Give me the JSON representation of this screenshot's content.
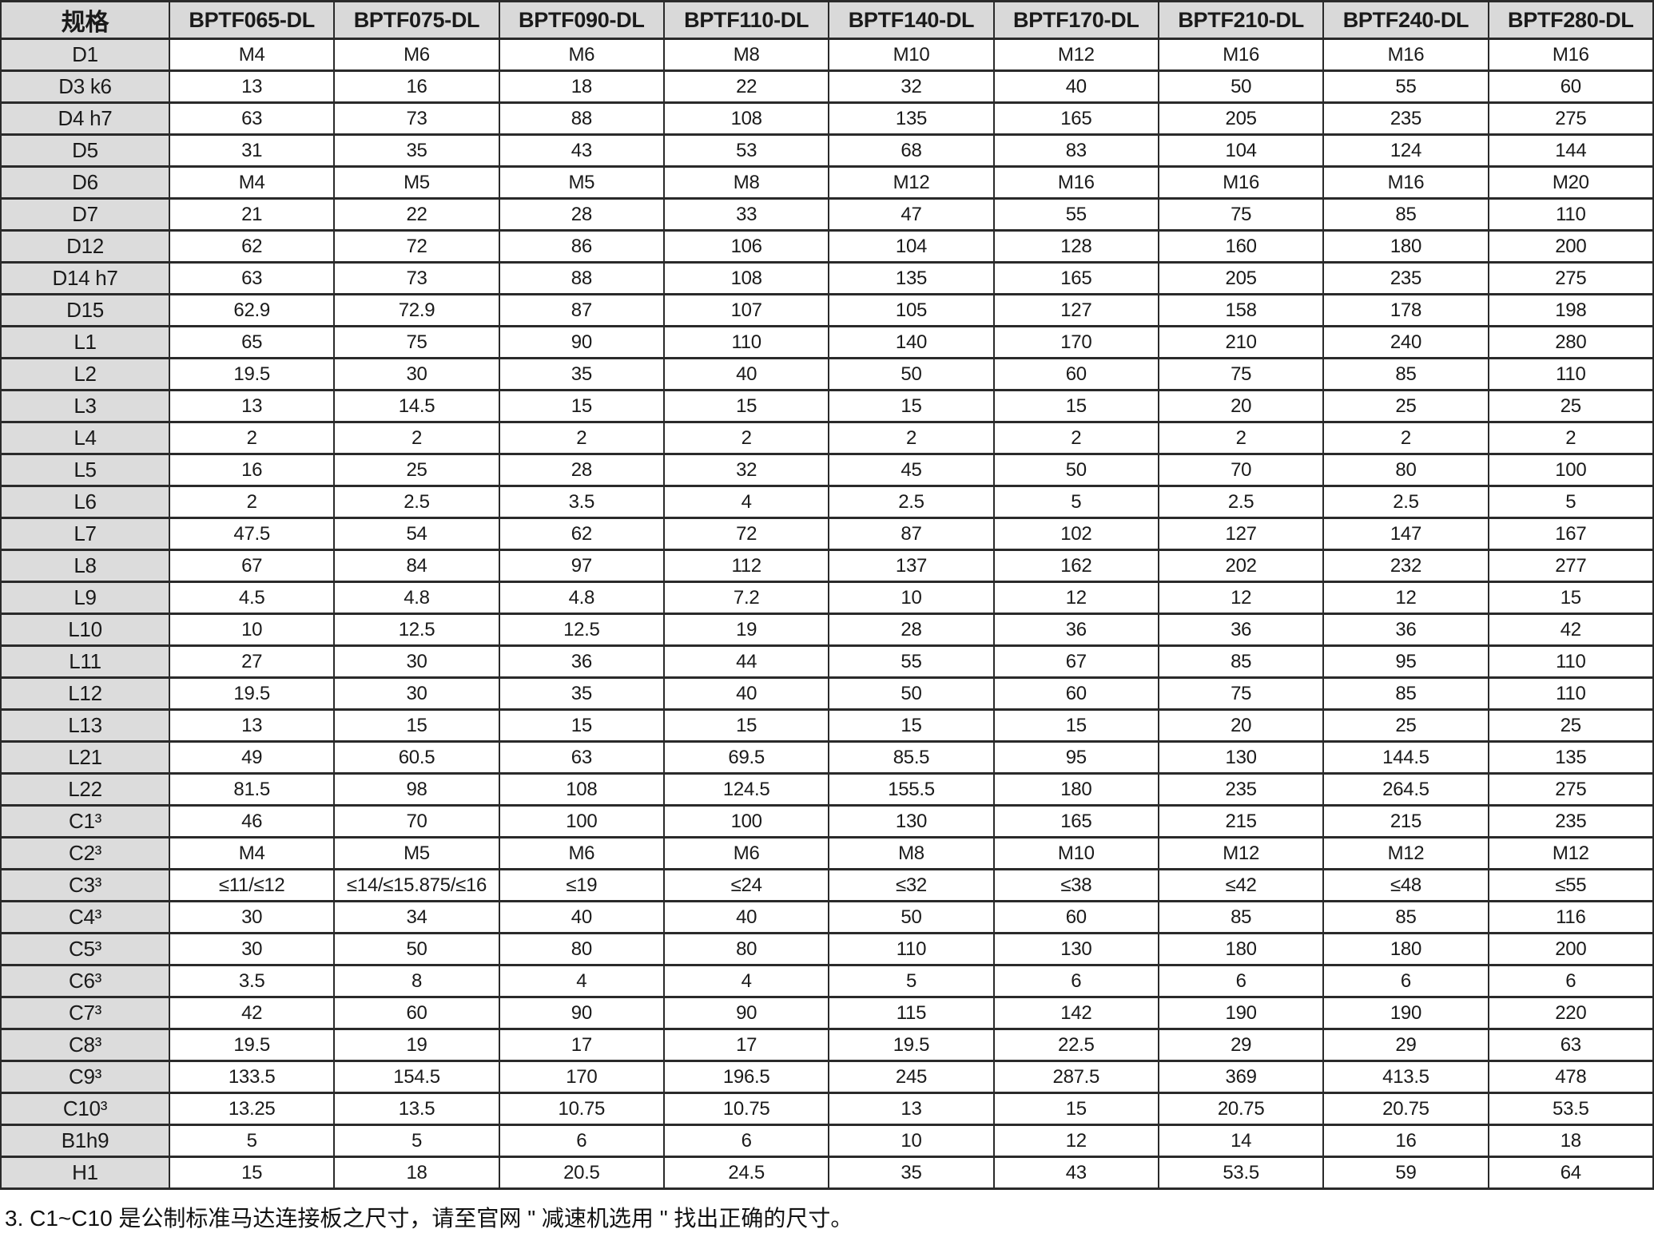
{
  "table": {
    "corner_label": "规格",
    "columns": [
      "BPTF065-DL",
      "BPTF075-DL",
      "BPTF090-DL",
      "BPTF110-DL",
      "BPTF140-DL",
      "BPTF170-DL",
      "BPTF210-DL",
      "BPTF240-DL",
      "BPTF280-DL"
    ],
    "rows": [
      {
        "label": "D1",
        "values": [
          "M4",
          "M6",
          "M6",
          "M8",
          "M10",
          "M12",
          "M16",
          "M16",
          "M16"
        ]
      },
      {
        "label": "D3 k6",
        "values": [
          "13",
          "16",
          "18",
          "22",
          "32",
          "40",
          "50",
          "55",
          "60"
        ]
      },
      {
        "label": "D4 h7",
        "values": [
          "63",
          "73",
          "88",
          "108",
          "135",
          "165",
          "205",
          "235",
          "275"
        ]
      },
      {
        "label": "D5",
        "values": [
          "31",
          "35",
          "43",
          "53",
          "68",
          "83",
          "104",
          "124",
          "144"
        ]
      },
      {
        "label": "D6",
        "values": [
          "M4",
          "M5",
          "M5",
          "M8",
          "M12",
          "M16",
          "M16",
          "M16",
          "M20"
        ]
      },
      {
        "label": "D7",
        "values": [
          "21",
          "22",
          "28",
          "33",
          "47",
          "55",
          "75",
          "85",
          "110"
        ]
      },
      {
        "label": "D12",
        "values": [
          "62",
          "72",
          "86",
          "106",
          "104",
          "128",
          "160",
          "180",
          "200"
        ]
      },
      {
        "label": "D14 h7",
        "values": [
          "63",
          "73",
          "88",
          "108",
          "135",
          "165",
          "205",
          "235",
          "275"
        ]
      },
      {
        "label": "D15",
        "values": [
          "62.9",
          "72.9",
          "87",
          "107",
          "105",
          "127",
          "158",
          "178",
          "198"
        ]
      },
      {
        "label": "L1",
        "values": [
          "65",
          "75",
          "90",
          "110",
          "140",
          "170",
          "210",
          "240",
          "280"
        ]
      },
      {
        "label": "L2",
        "values": [
          "19.5",
          "30",
          "35",
          "40",
          "50",
          "60",
          "75",
          "85",
          "110"
        ]
      },
      {
        "label": "L3",
        "values": [
          "13",
          "14.5",
          "15",
          "15",
          "15",
          "15",
          "20",
          "25",
          "25"
        ]
      },
      {
        "label": "L4",
        "values": [
          "2",
          "2",
          "2",
          "2",
          "2",
          "2",
          "2",
          "2",
          "2"
        ]
      },
      {
        "label": "L5",
        "values": [
          "16",
          "25",
          "28",
          "32",
          "45",
          "50",
          "70",
          "80",
          "100"
        ]
      },
      {
        "label": "L6",
        "values": [
          "2",
          "2.5",
          "3.5",
          "4",
          "2.5",
          "5",
          "2.5",
          "2.5",
          "5"
        ]
      },
      {
        "label": "L7",
        "values": [
          "47.5",
          "54",
          "62",
          "72",
          "87",
          "102",
          "127",
          "147",
          "167"
        ]
      },
      {
        "label": "L8",
        "values": [
          "67",
          "84",
          "97",
          "112",
          "137",
          "162",
          "202",
          "232",
          "277"
        ]
      },
      {
        "label": "L9",
        "values": [
          "4.5",
          "4.8",
          "4.8",
          "7.2",
          "10",
          "12",
          "12",
          "12",
          "15"
        ]
      },
      {
        "label": "L10",
        "values": [
          "10",
          "12.5",
          "12.5",
          "19",
          "28",
          "36",
          "36",
          "36",
          "42"
        ]
      },
      {
        "label": "L11",
        "values": [
          "27",
          "30",
          "36",
          "44",
          "55",
          "67",
          "85",
          "95",
          "110"
        ]
      },
      {
        "label": "L12",
        "values": [
          "19.5",
          "30",
          "35",
          "40",
          "50",
          "60",
          "75",
          "85",
          "110"
        ]
      },
      {
        "label": "L13",
        "values": [
          "13",
          "15",
          "15",
          "15",
          "15",
          "15",
          "20",
          "25",
          "25"
        ]
      },
      {
        "label": "L21",
        "values": [
          "49",
          "60.5",
          "63",
          "69.5",
          "85.5",
          "95",
          "130",
          "144.5",
          "135"
        ]
      },
      {
        "label": "L22",
        "values": [
          "81.5",
          "98",
          "108",
          "124.5",
          "155.5",
          "180",
          "235",
          "264.5",
          "275"
        ]
      },
      {
        "label": "C1³",
        "values": [
          "46",
          "70",
          "100",
          "100",
          "130",
          "165",
          "215",
          "215",
          "235"
        ]
      },
      {
        "label": "C2³",
        "values": [
          "M4",
          "M5",
          "M6",
          "M6",
          "M8",
          "M10",
          "M12",
          "M12",
          "M12"
        ]
      },
      {
        "label": "C3³",
        "values": [
          "≤11/≤12",
          "≤14/≤15.875/≤16",
          "≤19",
          "≤24",
          "≤32",
          "≤38",
          "≤42",
          "≤48",
          "≤55"
        ]
      },
      {
        "label": "C4³",
        "values": [
          "30",
          "34",
          "40",
          "40",
          "50",
          "60",
          "85",
          "85",
          "116"
        ]
      },
      {
        "label": "C5³",
        "values": [
          "30",
          "50",
          "80",
          "80",
          "110",
          "130",
          "180",
          "180",
          "200"
        ]
      },
      {
        "label": "C6³",
        "values": [
          "3.5",
          "8",
          "4",
          "4",
          "5",
          "6",
          "6",
          "6",
          "6"
        ]
      },
      {
        "label": "C7³",
        "values": [
          "42",
          "60",
          "90",
          "90",
          "115",
          "142",
          "190",
          "190",
          "220"
        ]
      },
      {
        "label": "C8³",
        "values": [
          "19.5",
          "19",
          "17",
          "17",
          "19.5",
          "22.5",
          "29",
          "29",
          "63"
        ]
      },
      {
        "label": "C9³",
        "values": [
          "133.5",
          "154.5",
          "170",
          "196.5",
          "245",
          "287.5",
          "369",
          "413.5",
          "478"
        ]
      },
      {
        "label": "C10³",
        "values": [
          "13.25",
          "13.5",
          "10.75",
          "10.75",
          "13",
          "15",
          "20.75",
          "20.75",
          "53.5"
        ]
      },
      {
        "label": "B1h9",
        "values": [
          "5",
          "5",
          "6",
          "6",
          "10",
          "12",
          "14",
          "16",
          "18"
        ]
      },
      {
        "label": "H1",
        "values": [
          "15",
          "18",
          "20.5",
          "24.5",
          "35",
          "43",
          "53.5",
          "59",
          "64"
        ]
      }
    ]
  },
  "footnote": "3. C1~C10 是公制标准马达连接板之尺寸，请至官网 \" 减速机选用 \" 找出正确的尺寸。",
  "colors": {
    "header_bg": "#d9d9d9",
    "label_bg": "#dcdcdc",
    "border": "#2a2a2a",
    "text": "#1a1a1a"
  }
}
